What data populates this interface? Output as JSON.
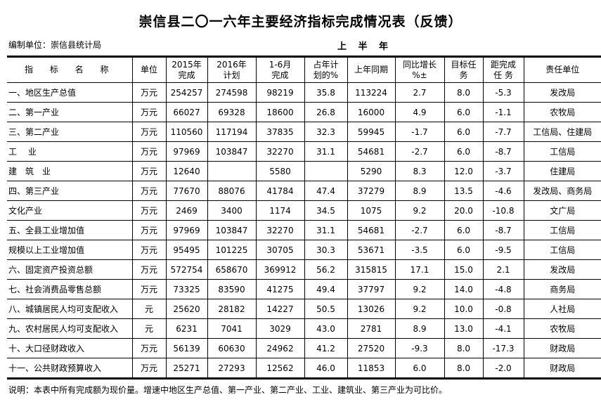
{
  "title": "崇信县二〇一六年主要经济指标完成情况表（反馈）",
  "org": "编制单位：崇信县统计局",
  "period": "上 半 年",
  "headers": [
    "指 标 名 称",
    "单位",
    "2015年\n完成",
    "2016年\n计划",
    "1-6月\n完成",
    "占年计\n划的%",
    "上年同期",
    "同比增长\n%±",
    "目标任\n务",
    "距完成\n任 务",
    "责任单位"
  ],
  "rows": [
    [
      "一、地区生产总值",
      "万元",
      "254257",
      "274598",
      "98219",
      "35.8",
      "113224",
      "2.7",
      "8.0",
      "-5.3",
      "发改局"
    ],
    [
      "二、第一产业",
      "万元",
      "66027",
      "69328",
      "18600",
      "26.8",
      "16000",
      "4.9",
      "6.0",
      "-1.1",
      "农牧局"
    ],
    [
      "三、第二产业",
      "万元",
      "110560",
      "117194",
      "37835",
      "32.3",
      "59945",
      "-1.7",
      "6.0",
      "-7.7",
      "工信局、住建局"
    ],
    [
      "工　 业",
      "万元",
      "97969",
      "103847",
      "32270",
      "31.1",
      "54681",
      "-2.7",
      "6.0",
      "-8.7",
      "工信局"
    ],
    [
      "建　筑　业",
      "万元",
      "12640",
      "",
      "5580",
      "",
      "5290",
      "8.3",
      "12.0",
      "-3.7",
      "住建局"
    ],
    [
      "四、第三产业",
      "万元",
      "77670",
      "88076",
      "41784",
      "47.4",
      "37279",
      "8.9",
      "13.5",
      "-4.6",
      "发改局、商务局"
    ],
    [
      "文化产业",
      "万元",
      "2469",
      "3400",
      "1174",
      "34.5",
      "1075",
      "9.2",
      "20.0",
      "-10.8",
      "文广局"
    ],
    [
      "五、全县工业增加值",
      "万元",
      "97969",
      "103847",
      "32270",
      "31.1",
      "54681",
      "-2.7",
      "6.0",
      "-8.7",
      "工信局"
    ],
    [
      "规模以上工业增加值",
      "万元",
      "95495",
      "101225",
      "30705",
      "30.3",
      "53671",
      "-3.5",
      "6.0",
      "-9.5",
      "工信局"
    ],
    [
      "六、固定资产投资总额",
      "万元",
      "572754",
      "658670",
      "369912",
      "56.2",
      "315815",
      "17.1",
      "15.0",
      "2.1",
      "发改局"
    ],
    [
      "七、社会消费品零售总额",
      "万元",
      "73325",
      "83590",
      "41275",
      "49.4",
      "37797",
      "9.2",
      "14.0",
      "-4.8",
      "商务局"
    ],
    [
      "八、城镇居民人均可支配收入",
      "元",
      "25620",
      "28182",
      "14227",
      "50.5",
      "13026",
      "9.2",
      "10.0",
      "-0.8",
      "人社局"
    ],
    [
      "九、农村居民人均可支配收入",
      "元",
      "6231",
      "7041",
      "3029",
      "43.0",
      "2781",
      "8.9",
      "13.0",
      "-4.1",
      "农牧局"
    ],
    [
      "十、大口径财政收入",
      "万元",
      "56139",
      "60630",
      "24962",
      "41.2",
      "27520",
      "-9.3",
      "8.0",
      "-17.3",
      "财政局"
    ],
    [
      "十一、公共财政预算收入",
      "万元",
      "25271",
      "27293",
      "12562",
      "46.0",
      "11853",
      "6.0",
      "8.0",
      "-2.0",
      "财政局"
    ]
  ],
  "note": "说明：本表中所有完成额为现价量。增速中地区生产总值、第一产业、第二产业、工业、建筑业、第三产业为可比价。"
}
